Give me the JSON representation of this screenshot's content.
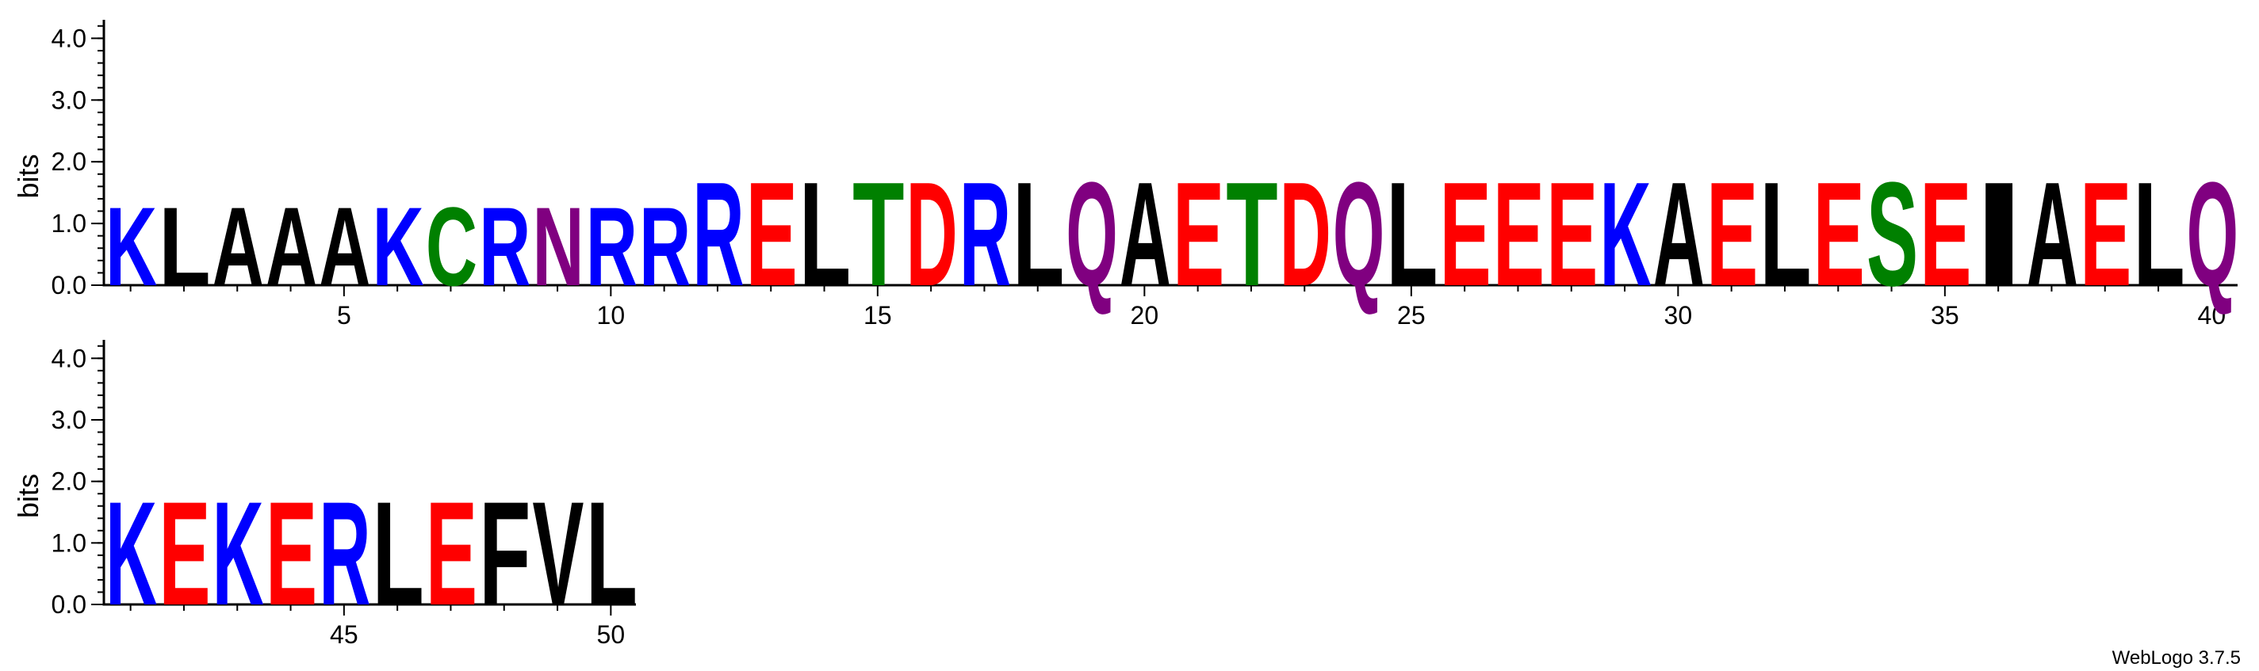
{
  "chart_data": {
    "type": "sequence-logo",
    "ylabel": "bits",
    "ylim": [
      0,
      4.3
    ],
    "yticks": [
      "0.0",
      "1.0",
      "2.0",
      "3.0",
      "4.0"
    ],
    "xticks": [
      5,
      10,
      15,
      20,
      25,
      30,
      35,
      40,
      45,
      50
    ],
    "positions": [
      {
        "pos": 1,
        "letter": "K",
        "bits": 1.3
      },
      {
        "pos": 2,
        "letter": "L",
        "bits": 1.3
      },
      {
        "pos": 3,
        "letter": "A",
        "bits": 1.3
      },
      {
        "pos": 4,
        "letter": "A",
        "bits": 1.3
      },
      {
        "pos": 5,
        "letter": "A",
        "bits": 1.3
      },
      {
        "pos": 6,
        "letter": "K",
        "bits": 1.3
      },
      {
        "pos": 7,
        "letter": "C",
        "bits": 1.3
      },
      {
        "pos": 8,
        "letter": "R",
        "bits": 1.3
      },
      {
        "pos": 9,
        "letter": "N",
        "bits": 1.3
      },
      {
        "pos": 10,
        "letter": "R",
        "bits": 1.3
      },
      {
        "pos": 11,
        "letter": "R",
        "bits": 1.3
      },
      {
        "pos": 12,
        "letter": "R",
        "bits": 1.72
      },
      {
        "pos": 13,
        "letter": "E",
        "bits": 1.72
      },
      {
        "pos": 14,
        "letter": "L",
        "bits": 1.72
      },
      {
        "pos": 15,
        "letter": "T",
        "bits": 1.72
      },
      {
        "pos": 16,
        "letter": "D",
        "bits": 1.72
      },
      {
        "pos": 17,
        "letter": "R",
        "bits": 1.72
      },
      {
        "pos": 18,
        "letter": "L",
        "bits": 1.72
      },
      {
        "pos": 19,
        "letter": "Q",
        "bits": 1.72
      },
      {
        "pos": 20,
        "letter": "A",
        "bits": 1.72
      },
      {
        "pos": 21,
        "letter": "E",
        "bits": 1.72
      },
      {
        "pos": 22,
        "letter": "T",
        "bits": 1.72
      },
      {
        "pos": 23,
        "letter": "D",
        "bits": 1.72
      },
      {
        "pos": 24,
        "letter": "Q",
        "bits": 1.72
      },
      {
        "pos": 25,
        "letter": "L",
        "bits": 1.72
      },
      {
        "pos": 26,
        "letter": "E",
        "bits": 1.72
      },
      {
        "pos": 27,
        "letter": "E",
        "bits": 1.72
      },
      {
        "pos": 28,
        "letter": "E",
        "bits": 1.72
      },
      {
        "pos": 29,
        "letter": "K",
        "bits": 1.72
      },
      {
        "pos": 30,
        "letter": "A",
        "bits": 1.72
      },
      {
        "pos": 31,
        "letter": "E",
        "bits": 1.72
      },
      {
        "pos": 32,
        "letter": "L",
        "bits": 1.72
      },
      {
        "pos": 33,
        "letter": "E",
        "bits": 1.72
      },
      {
        "pos": 34,
        "letter": "S",
        "bits": 1.72
      },
      {
        "pos": 35,
        "letter": "E",
        "bits": 1.72
      },
      {
        "pos": 36,
        "letter": "I",
        "bits": 1.72
      },
      {
        "pos": 37,
        "letter": "A",
        "bits": 1.72
      },
      {
        "pos": 38,
        "letter": "E",
        "bits": 1.72
      },
      {
        "pos": 39,
        "letter": "L",
        "bits": 1.72
      },
      {
        "pos": 40,
        "letter": "Q",
        "bits": 1.72
      },
      {
        "pos": 41,
        "letter": "K",
        "bits": 1.72
      },
      {
        "pos": 42,
        "letter": "E",
        "bits": 1.72
      },
      {
        "pos": 43,
        "letter": "K",
        "bits": 1.72
      },
      {
        "pos": 44,
        "letter": "E",
        "bits": 1.72
      },
      {
        "pos": 45,
        "letter": "R",
        "bits": 1.72
      },
      {
        "pos": 46,
        "letter": "L",
        "bits": 1.72
      },
      {
        "pos": 47,
        "letter": "E",
        "bits": 1.72
      },
      {
        "pos": 48,
        "letter": "F",
        "bits": 1.72
      },
      {
        "pos": 49,
        "letter": "V",
        "bits": 1.72
      },
      {
        "pos": 50,
        "letter": "L",
        "bits": 1.72
      }
    ],
    "rows": [
      {
        "start": 1,
        "end": 40
      },
      {
        "start": 41,
        "end": 50
      }
    ],
    "color_scheme": {
      "K": "#0000ff",
      "R": "#0000ff",
      "H": "#0000ff",
      "D": "#ff0000",
      "E": "#ff0000",
      "N": "#800080",
      "Q": "#800080",
      "S": "#008000",
      "T": "#008000",
      "G": "#008000",
      "C": "#008000",
      "Y": "#008000",
      "A": "#000000",
      "V": "#000000",
      "L": "#000000",
      "I": "#000000",
      "P": "#000000",
      "W": "#000000",
      "F": "#000000",
      "M": "#000000"
    }
  },
  "footer": {
    "credit": "WebLogo 3.7.5"
  }
}
